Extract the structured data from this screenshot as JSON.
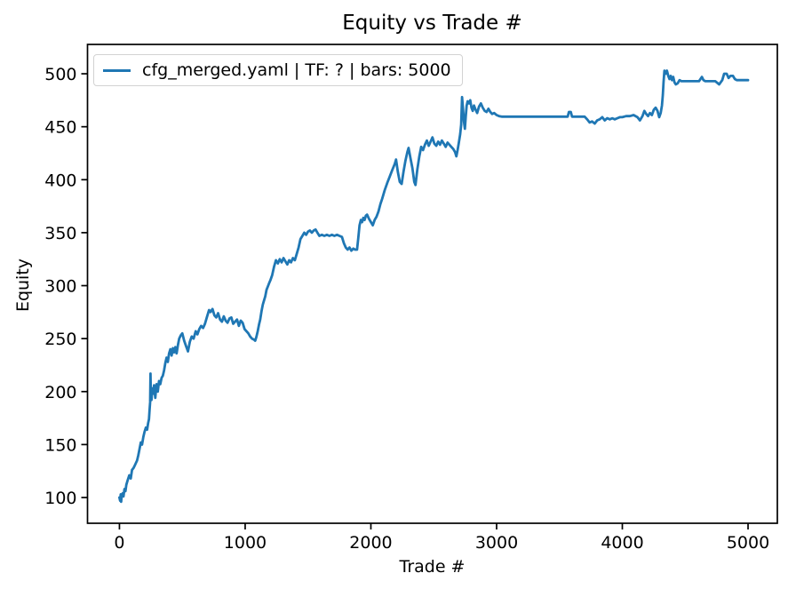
{
  "figure": {
    "title": "Equity vs Trade #",
    "xlabel": "Trade #",
    "ylabel": "Equity"
  },
  "legend": {
    "entries": [
      {
        "label": "cfg_merged.yaml | TF: ? | bars: 5000",
        "color": "#1f77b4"
      }
    ]
  },
  "colors": {
    "line": "#1f77b4",
    "axis": "#000000",
    "background": "#ffffff",
    "legend_border": "#d2d2d2"
  },
  "chart_data": {
    "type": "line",
    "title": "Equity vs Trade #",
    "xlabel": "Trade #",
    "ylabel": "Equity",
    "grid": false,
    "legend_position": "upper left",
    "xlim": [
      -254,
      5233
    ],
    "ylim": [
      75.7,
      527.7
    ],
    "xticks": [
      0,
      1000,
      2000,
      3000,
      4000,
      5000
    ],
    "yticks": [
      100,
      150,
      200,
      250,
      300,
      350,
      400,
      450,
      500
    ],
    "series": [
      {
        "name": "cfg_merged.yaml | TF: ? | bars: 5000",
        "color": "#1f77b4",
        "x": [
          0,
          5,
          10,
          14,
          18,
          25,
          32,
          40,
          48,
          55,
          65,
          78,
          90,
          100,
          113,
          125,
          140,
          150,
          160,
          170,
          180,
          190,
          200,
          210,
          220,
          228,
          235,
          240,
          244,
          247,
          250,
          255,
          262,
          268,
          275,
          285,
          295,
          305,
          315,
          325,
          335,
          345,
          355,
          365,
          375,
          385,
          395,
          405,
          415,
          425,
          435,
          445,
          455,
          465,
          475,
          487,
          500,
          515,
          530,
          545,
          560,
          575,
          590,
          607,
          620,
          635,
          650,
          665,
          680,
          695,
          713,
          725,
          740,
          755,
          770,
          785,
          800,
          815,
          830,
          845,
          860,
          875,
          890,
          905,
          920,
          935,
          950,
          965,
          980,
          995,
          1010,
          1025,
          1040,
          1055,
          1070,
          1080,
          1090,
          1100,
          1110,
          1120,
          1130,
          1140,
          1150,
          1160,
          1170,
          1180,
          1190,
          1200,
          1215,
          1230,
          1245,
          1260,
          1275,
          1290,
          1305,
          1320,
          1335,
          1350,
          1365,
          1380,
          1395,
          1410,
          1425,
          1440,
          1455,
          1470,
          1485,
          1500,
          1515,
          1530,
          1545,
          1560,
          1575,
          1590,
          1610,
          1630,
          1650,
          1670,
          1690,
          1710,
          1730,
          1750,
          1770,
          1785,
          1800,
          1815,
          1830,
          1845,
          1860,
          1875,
          1890,
          1900,
          1910,
          1920,
          1930,
          1940,
          1950,
          1960,
          1970,
          1985,
          2000,
          2015,
          2030,
          2045,
          2060,
          2076,
          2090,
          2110,
          2130,
          2150,
          2170,
          2190,
          2200,
          2215,
          2230,
          2245,
          2260,
          2275,
          2290,
          2300,
          2315,
          2330,
          2345,
          2355,
          2370,
          2385,
          2400,
          2415,
          2430,
          2445,
          2460,
          2475,
          2490,
          2505,
          2520,
          2535,
          2550,
          2565,
          2580,
          2595,
          2610,
          2625,
          2640,
          2655,
          2670,
          2680,
          2690,
          2700,
          2710,
          2718,
          2725,
          2732,
          2740,
          2748,
          2755,
          2762,
          2770,
          2780,
          2790,
          2800,
          2810,
          2820,
          2830,
          2845,
          2860,
          2875,
          2890,
          2905,
          2920,
          2935,
          2950,
          2965,
          2980,
          3000,
          3020,
          3040,
          3080,
          3150,
          3250,
          3350,
          3450,
          3550,
          3565,
          3575,
          3590,
          3600,
          3620,
          3660,
          3700,
          3720,
          3740,
          3760,
          3780,
          3800,
          3820,
          3840,
          3860,
          3880,
          3900,
          3920,
          3940,
          3960,
          3980,
          4000,
          4030,
          4060,
          4090,
          4120,
          4140,
          4160,
          4175,
          4190,
          4205,
          4220,
          4235,
          4250,
          4265,
          4280,
          4293,
          4305,
          4315,
          4322,
          4328,
          4335,
          4345,
          4355,
          4365,
          4375,
          4385,
          4395,
          4405,
          4415,
          4425,
          4440,
          4455,
          4470,
          4490,
          4520,
          4550,
          4580,
          4610,
          4633,
          4645,
          4660,
          4680,
          4710,
          4740,
          4770,
          4795,
          4810,
          4830,
          4845,
          4860,
          4880,
          4895,
          4910,
          4930,
          4950,
          4975,
          5000
        ],
        "y": [
          100,
          97,
          103,
          96,
          102,
          104,
          101,
          108,
          106,
          112,
          116,
          121,
          118,
          126,
          128,
          131,
          135,
          140,
          146,
          152,
          150,
          157,
          162,
          166,
          164,
          170,
          174,
          183,
          190,
          217,
          196,
          192,
          203,
          198,
          206,
          194,
          207,
          200,
          210,
          207,
          213,
          215,
          220,
          227,
          232,
          228,
          236,
          240,
          234,
          241,
          237,
          242,
          236,
          244,
          250,
          253,
          255,
          248,
          243,
          238,
          247,
          252,
          250,
          257,
          254,
          259,
          262,
          260,
          264,
          270,
          277,
          275,
          278,
          272,
          270,
          274,
          268,
          266,
          271,
          267,
          265,
          269,
          270,
          264,
          266,
          268,
          262,
          267,
          265,
          259,
          257,
          255,
          252,
          250,
          249,
          248,
          252,
          257,
          263,
          268,
          276,
          282,
          286,
          290,
          296,
          299,
          302,
          305,
          310,
          318,
          324,
          321,
          325,
          322,
          326,
          323,
          320,
          324,
          322,
          326,
          324,
          330,
          336,
          344,
          347,
          350,
          348,
          351,
          352,
          350,
          352,
          353,
          350,
          347,
          348,
          347,
          348,
          347,
          348,
          347,
          348,
          347,
          346,
          340,
          336,
          334,
          336,
          333,
          335,
          334,
          334,
          345,
          357,
          362,
          360,
          364,
          362,
          366,
          367,
          363,
          360,
          357,
          362,
          365,
          370,
          377,
          382,
          390,
          397,
          403,
          409,
          415,
          419,
          407,
          398,
          396,
          408,
          418,
          426,
          430,
          420,
          411,
          398,
          395,
          410,
          422,
          431,
          428,
          433,
          437,
          432,
          436,
          440,
          434,
          432,
          436,
          433,
          437,
          434,
          431,
          435,
          433,
          431,
          429,
          426,
          422,
          428,
          435,
          443,
          452,
          478,
          468,
          455,
          448,
          460,
          470,
          474,
          472,
          475,
          468,
          465,
          470,
          467,
          463,
          469,
          472,
          468,
          465,
          464,
          467,
          464,
          462,
          463,
          461,
          460,
          459.5,
          459.5,
          459.5,
          459.5,
          459.5,
          459.5,
          459.5,
          459.5,
          464,
          464,
          459.5,
          459.5,
          459.5,
          459.5,
          457,
          454,
          455,
          453,
          456,
          457,
          459,
          456,
          458,
          457,
          458,
          457,
          458,
          459,
          459,
          460,
          460,
          461,
          459,
          456,
          460,
          465,
          462,
          460,
          463,
          461,
          466,
          468,
          465,
          459,
          463,
          470,
          480,
          492,
          503,
          500,
          503,
          498,
          495,
          498,
          494,
          497,
          492,
          490,
          491,
          494,
          493,
          493,
          493,
          493,
          493,
          493,
          497,
          494,
          493,
          493,
          493,
          493,
          490,
          494,
          500,
          500,
          496,
          498,
          498,
          495,
          494,
          494,
          494,
          494,
          494
        ]
      }
    ]
  }
}
